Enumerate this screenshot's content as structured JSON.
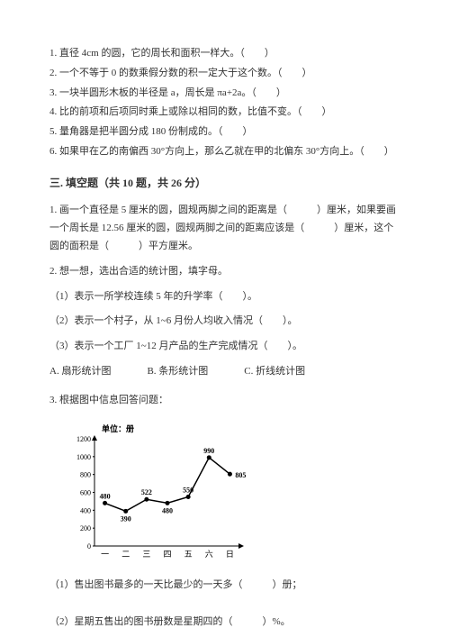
{
  "topQuestions": {
    "q1": "1. 直径 4cm 的圆，它的周长和面积一样大。（　　）",
    "q2": "2. 一个不等于 0 的数乘假分数的积一定大于这个数。（　　）",
    "q3": "3. 一块半圆形木板的半径是 a，周长是 πa+2a。（　　）",
    "q4": "4. 比的前项和后项同时乘上或除以相同的数，比值不变。（　　）",
    "q5": "5. 量角器是把半圆分成 180 份制成的。（　　）",
    "q6": "6. 如果甲在乙的南偏西 30°方向上，那么乙就在甲的北偏东 30°方向上。（　　）"
  },
  "section3": {
    "title": "三. 填空题（共 10 题，共 26 分）",
    "q1": "1. 画一个直径是 5 厘米的圆，圆规两脚之间的距离是（　　　）厘米，如果要画一个周长是 12.56 厘米的圆，圆规两脚之间的距离应该是（　　　）厘米，这个圆的面积是（　　　）平方厘米。",
    "q2intro": "2. 想一想，选出合适的统计图，填字母。",
    "q2_1": "（1）表示一所学校连续 5 年的升学率（　　）。",
    "q2_2": "（2）表示一个村子，从 1~6 月份人均收入情况（　　）。",
    "q2_3": "（3）表示一个工厂 1~12 月产品的生产完成情况（　　）。",
    "optA": "A. 扇形统计图",
    "optB": "B. 条形统计图",
    "optC": "C. 折线统计图",
    "q3intro": "3. 根据图中信息回答问题：",
    "q3_1": "（1）售出图书最多的一天比最少的一天多（　　　）册；",
    "q3_2": "（2）星期五售出的图书册数是星期四的（　　　）%。"
  },
  "chart": {
    "unit_label": "单位：册",
    "y_min": 0,
    "y_max": 1200,
    "y_step": 200,
    "y_ticks": [
      "0",
      "200",
      "400",
      "600",
      "800",
      "1000",
      "1200"
    ],
    "x_labels": [
      "一",
      "二",
      "三",
      "四",
      "五",
      "六",
      "日"
    ],
    "values": [
      480,
      390,
      522,
      480,
      550,
      990,
      805
    ],
    "value_labels": [
      "480",
      "390",
      "522",
      "480",
      "550",
      "990",
      "805"
    ],
    "line_color": "#000000",
    "marker_color": "#000000",
    "background_color": "#ffffff",
    "axis_color": "#000000"
  }
}
